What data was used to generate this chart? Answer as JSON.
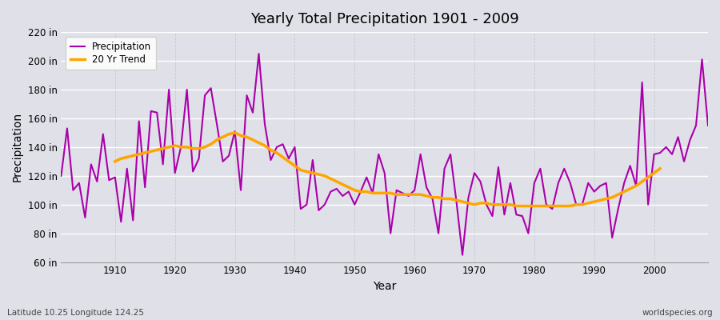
{
  "title": "Yearly Total Precipitation 1901 - 2009",
  "xlabel": "Year",
  "ylabel": "Precipitation",
  "subtitle": "Latitude 10.25 Longitude 124.25",
  "watermark": "worldspecies.org",
  "ylim": [
    60,
    220
  ],
  "yticks": [
    60,
    80,
    100,
    120,
    140,
    160,
    180,
    200,
    220
  ],
  "ytick_labels": [
    "60 in",
    "80 in",
    "100 in",
    "120 in",
    "140 in",
    "160 in",
    "180 in",
    "200 in",
    "220 in"
  ],
  "precipitation_color": "#AA00AA",
  "trend_color": "#FFA500",
  "bg_color": "#E0E0E8",
  "legend_loc": "upper left",
  "legend_labels": [
    "Precipitation",
    "20 Yr Trend"
  ],
  "years": [
    1901,
    1902,
    1903,
    1904,
    1905,
    1906,
    1907,
    1908,
    1909,
    1910,
    1911,
    1912,
    1913,
    1914,
    1915,
    1916,
    1917,
    1918,
    1919,
    1920,
    1921,
    1922,
    1923,
    1924,
    1925,
    1926,
    1927,
    1928,
    1929,
    1930,
    1931,
    1932,
    1933,
    1934,
    1935,
    1936,
    1937,
    1938,
    1939,
    1940,
    1941,
    1942,
    1943,
    1944,
    1945,
    1946,
    1947,
    1948,
    1949,
    1950,
    1951,
    1952,
    1953,
    1954,
    1955,
    1956,
    1957,
    1958,
    1959,
    1960,
    1961,
    1962,
    1963,
    1964,
    1965,
    1966,
    1967,
    1968,
    1969,
    1970,
    1971,
    1972,
    1973,
    1974,
    1975,
    1976,
    1977,
    1978,
    1979,
    1980,
    1981,
    1982,
    1983,
    1984,
    1985,
    1986,
    1987,
    1988,
    1989,
    1990,
    1991,
    1992,
    1993,
    1994,
    1995,
    1996,
    1997,
    1998,
    1999,
    2000,
    2001,
    2002,
    2003,
    2004,
    2005,
    2006,
    2007,
    2008,
    2009
  ],
  "precipitation": [
    120,
    153,
    110,
    115,
    91,
    128,
    116,
    149,
    117,
    119,
    88,
    125,
    89,
    158,
    112,
    165,
    164,
    128,
    180,
    122,
    140,
    180,
    123,
    132,
    176,
    181,
    156,
    130,
    134,
    151,
    110,
    176,
    164,
    205,
    156,
    131,
    140,
    142,
    132,
    140,
    97,
    100,
    131,
    96,
    100,
    109,
    111,
    106,
    109,
    100,
    109,
    119,
    108,
    135,
    122,
    80,
    110,
    108,
    106,
    110,
    135,
    112,
    104,
    80,
    125,
    135,
    102,
    65,
    105,
    122,
    116,
    100,
    92,
    126,
    93,
    115,
    93,
    92,
    80,
    115,
    125,
    100,
    97,
    115,
    125,
    115,
    100,
    100,
    115,
    109,
    113,
    115,
    77,
    97,
    115,
    127,
    113,
    185,
    100,
    135,
    136,
    140,
    135,
    147,
    130,
    145,
    155,
    201,
    155
  ],
  "trend": [
    null,
    null,
    null,
    null,
    null,
    null,
    null,
    null,
    null,
    130,
    132,
    133,
    134,
    135,
    136,
    137,
    138,
    139,
    140,
    141,
    140,
    140,
    139,
    139,
    140,
    142,
    145,
    147,
    149,
    150,
    148,
    147,
    145,
    143,
    141,
    138,
    136,
    133,
    130,
    127,
    124,
    123,
    122,
    121,
    120,
    118,
    116,
    114,
    112,
    110,
    109,
    109,
    108,
    108,
    108,
    108,
    107,
    107,
    107,
    107,
    107,
    106,
    105,
    105,
    104,
    104,
    103,
    102,
    101,
    100,
    101,
    101,
    100,
    100,
    100,
    100,
    99,
    99,
    99,
    99,
    99,
    99,
    99,
    99,
    99,
    99,
    100,
    100,
    101,
    102,
    103,
    104,
    105,
    107,
    109,
    111,
    113,
    116,
    119,
    122,
    125,
    null,
    null,
    null,
    null,
    null,
    null,
    null,
    null
  ],
  "xticks": [
    1910,
    1920,
    1930,
    1940,
    1950,
    1960,
    1970,
    1980,
    1990,
    2000
  ],
  "xlim": [
    1901,
    2009
  ]
}
